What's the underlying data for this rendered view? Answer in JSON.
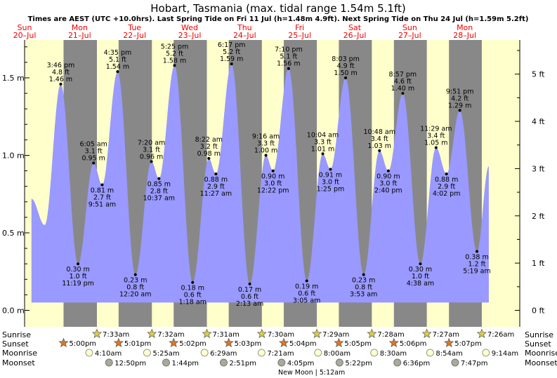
{
  "chart_data": {
    "type": "area",
    "title": "Hobart, Tasmania (max. tidal range 1.54m 5.1ft)",
    "subtitle": "Times are AEST (UTC +10.0hrs). Last Spring Tide on Fri 11 Jul (h=1.48m 4.9ft). Next Spring Tide on Thu 24 Jul (h=1.59m 5.2ft)",
    "x_range_hours": [
      0,
      216
    ],
    "ylim_m": [
      -0.05,
      1.75
    ],
    "yticks_m": [
      {
        "v": 0.0,
        "label": "0.0 m"
      },
      {
        "v": 0.5,
        "label": "0.5 m"
      },
      {
        "v": 1.0,
        "label": "1.0 m"
      },
      {
        "v": 1.5,
        "label": "1.5 m"
      }
    ],
    "yticks_ft": [
      {
        "v": 0,
        "label": "0 ft"
      },
      {
        "v": 1,
        "label": "1 ft"
      },
      {
        "v": 2,
        "label": "2 ft"
      },
      {
        "v": 3,
        "label": "3 ft"
      },
      {
        "v": 4,
        "label": "4 ft"
      },
      {
        "v": 5,
        "label": "5 ft"
      }
    ],
    "days": [
      {
        "day": "Sun",
        "date": "20–Jul",
        "start": 0
      },
      {
        "day": "Mon",
        "date": "21–Jul",
        "start": 24
      },
      {
        "day": "Tue",
        "date": "22–Jul",
        "start": 48
      },
      {
        "day": "Wed",
        "date": "23–Jul",
        "start": 72
      },
      {
        "day": "Thu",
        "date": "24–Jul",
        "start": 96
      },
      {
        "day": "Fri",
        "date": "25–Jul",
        "start": 120
      },
      {
        "day": "Sat",
        "date": "26–Jul",
        "start": 144
      },
      {
        "day": "Sun",
        "date": "27–Jul",
        "start": 168
      },
      {
        "day": "Mon",
        "date": "28–Jul",
        "start": 192
      }
    ],
    "tides": [
      {
        "h": 15.767,
        "m": 1.46,
        "time": "3:46 pm",
        "ft": "4.8 ft",
        "mlabel": "1.46 m",
        "type": "high"
      },
      {
        "h": 23.317,
        "m": 0.3,
        "time": "11:19 pm",
        "ft": "1.0 ft",
        "mlabel": "0.30 m",
        "type": "low"
      },
      {
        "h": 30.083,
        "m": 0.95,
        "time": "6:05 am",
        "ft": "3.1 ft",
        "mlabel": "0.95 m",
        "type": "high"
      },
      {
        "h": 33.85,
        "m": 0.81,
        "time": "9:51 am",
        "ft": "2.7 ft",
        "mlabel": "0.81 m",
        "type": "low"
      },
      {
        "h": 40.583,
        "m": 1.54,
        "time": "4:35 pm",
        "ft": "5.1 ft",
        "mlabel": "1.54 m",
        "type": "high"
      },
      {
        "h": 48.333,
        "m": 0.23,
        "time": "12:20 am",
        "ft": "0.8 ft",
        "mlabel": "0.23 m",
        "type": "low"
      },
      {
        "h": 55.333,
        "m": 0.96,
        "time": "7:20 am",
        "ft": "3.1 ft",
        "mlabel": "0.96 m",
        "type": "high"
      },
      {
        "h": 58.617,
        "m": 0.85,
        "time": "10:37 am",
        "ft": "2.8 ft",
        "mlabel": "0.85 m",
        "type": "low"
      },
      {
        "h": 65.417,
        "m": 1.58,
        "time": "5:25 pm",
        "ft": "5.2 ft",
        "mlabel": "1.58 m",
        "type": "high"
      },
      {
        "h": 73.3,
        "m": 0.18,
        "time": "1:18 am",
        "ft": "0.6 ft",
        "mlabel": "0.18 m",
        "type": "low"
      },
      {
        "h": 80.367,
        "m": 0.98,
        "time": "8:22 am",
        "ft": "3.2 ft",
        "mlabel": "0.98 m",
        "type": "high"
      },
      {
        "h": 83.45,
        "m": 0.88,
        "time": "11:27 am",
        "ft": "2.9 ft",
        "mlabel": "0.88 m",
        "type": "low"
      },
      {
        "h": 90.283,
        "m": 1.59,
        "time": "6:17 pm",
        "ft": "5.2 ft",
        "mlabel": "1.59 m",
        "type": "high"
      },
      {
        "h": 98.217,
        "m": 0.17,
        "time": "2:13 am",
        "ft": "0.6 ft",
        "mlabel": "0.17 m",
        "type": "low"
      },
      {
        "h": 105.267,
        "m": 1.0,
        "time": "9:16 am",
        "ft": "3.3 ft",
        "mlabel": "1.00 m",
        "type": "high"
      },
      {
        "h": 108.367,
        "m": 0.9,
        "time": "12:22 pm",
        "ft": "3.0 ft",
        "mlabel": "0.90 m",
        "type": "low"
      },
      {
        "h": 115.167,
        "m": 1.56,
        "time": "7:10 pm",
        "ft": "5.1 ft",
        "mlabel": "1.56 m",
        "type": "high"
      },
      {
        "h": 123.083,
        "m": 0.19,
        "time": "3:05 am",
        "ft": "0.6 ft",
        "mlabel": "0.19 m",
        "type": "low"
      },
      {
        "h": 130.067,
        "m": 1.01,
        "time": "10:04 am",
        "ft": "3.3 ft",
        "mlabel": "1.01 m",
        "type": "high"
      },
      {
        "h": 133.417,
        "m": 0.91,
        "time": "1:25 pm",
        "ft": "3.0 ft",
        "mlabel": "0.91 m",
        "type": "low"
      },
      {
        "h": 140.05,
        "m": 1.5,
        "time": "8:03 pm",
        "ft": "4.9 ft",
        "mlabel": "1.50 m",
        "type": "high"
      },
      {
        "h": 147.883,
        "m": 0.23,
        "time": "3:53 am",
        "ft": "0.8 ft",
        "mlabel": "0.23 m",
        "type": "low"
      },
      {
        "h": 154.8,
        "m": 1.03,
        "time": "10:48 am",
        "ft": "3.4 ft",
        "mlabel": "1.03 m",
        "type": "high"
      },
      {
        "h": 158.667,
        "m": 0.9,
        "time": "2:40 pm",
        "ft": "3.0 ft",
        "mlabel": "0.90 m",
        "type": "low"
      },
      {
        "h": 164.95,
        "m": 1.4,
        "time": "8:57 pm",
        "ft": "4.6 ft",
        "mlabel": "1.40 m",
        "type": "high"
      },
      {
        "h": 172.633,
        "m": 0.3,
        "time": "4:38 am",
        "ft": "1.0 ft",
        "mlabel": "0.30 m",
        "type": "low"
      },
      {
        "h": 179.483,
        "m": 1.05,
        "time": "11:29 am",
        "ft": "3.4 ft",
        "mlabel": "1.05 m",
        "type": "high"
      },
      {
        "h": 184.033,
        "m": 0.88,
        "time": "4:02 pm",
        "ft": "2.9 ft",
        "mlabel": "0.88 m",
        "type": "low"
      },
      {
        "h": 189.85,
        "m": 1.29,
        "time": "9:51 pm",
        "ft": "4.2 ft",
        "mlabel": "1.29 m",
        "type": "high"
      },
      {
        "h": 197.317,
        "m": 0.38,
        "time": "5:19 am",
        "ft": "1.2 ft",
        "mlabel": "0.38 m",
        "type": "low"
      }
    ],
    "sunrise": [
      {
        "h": 31.55,
        "label": "7:33am"
      },
      {
        "h": 55.533,
        "label": "7:32am"
      },
      {
        "h": 79.517,
        "label": "7:31am"
      },
      {
        "h": 103.5,
        "label": "7:30am"
      },
      {
        "h": 127.483,
        "label": "7:29am"
      },
      {
        "h": 151.467,
        "label": "7:28am"
      },
      {
        "h": 175.45,
        "label": "7:27am"
      },
      {
        "h": 199.433,
        "label": "7:26am"
      }
    ],
    "sunset": [
      {
        "h": 17.0,
        "label": "5:00pm"
      },
      {
        "h": 41.017,
        "label": "5:01pm"
      },
      {
        "h": 65.033,
        "label": "5:02pm"
      },
      {
        "h": 89.05,
        "label": "5:03pm"
      },
      {
        "h": 113.067,
        "label": "5:04pm"
      },
      {
        "h": 137.083,
        "label": "5:05pm"
      },
      {
        "h": 161.1,
        "label": "5:06pm"
      },
      {
        "h": 185.117,
        "label": "5:07pm"
      }
    ],
    "moonrise": [
      {
        "h": 28.167,
        "label": "4:10am"
      },
      {
        "h": 53.417,
        "label": "5:25am"
      },
      {
        "h": 78.483,
        "label": "6:29am"
      },
      {
        "h": 103.35,
        "label": "7:21am"
      },
      {
        "h": 128.0,
        "label": "8:00am"
      },
      {
        "h": 152.5,
        "label": "8:30am"
      },
      {
        "h": 176.9,
        "label": "8:54am"
      },
      {
        "h": 201.233,
        "label": "9:14am"
      }
    ],
    "moonset": [
      {
        "h": 36.833,
        "label": "12:50pm"
      },
      {
        "h": 61.733,
        "label": "1:44pm"
      },
      {
        "h": 86.85,
        "label": "2:51pm"
      },
      {
        "h": 112.083,
        "label": "4:05pm"
      },
      {
        "h": 137.367,
        "label": "5:22pm"
      },
      {
        "h": 162.6,
        "label": "6:36pm"
      },
      {
        "h": 187.783,
        "label": "7:47pm"
      }
    ],
    "moon_phase": {
      "h": 125.2,
      "label": "New Moon | 5:12am"
    },
    "row_labels": {
      "sunrise": "Sunrise",
      "sunset": "Sunset",
      "moonrise": "Moonrise",
      "moonset": "Moonset"
    }
  },
  "colors": {
    "day_band": "#ffffcc",
    "night_band": "#888888",
    "water": "#9999ff",
    "day_label": "#ee0000",
    "sunrise_star": "#ddcc44",
    "sunset_star": "#dd7722",
    "moonrise_fill": "#ffffcc",
    "moonset_fill": "#aaaa99"
  }
}
